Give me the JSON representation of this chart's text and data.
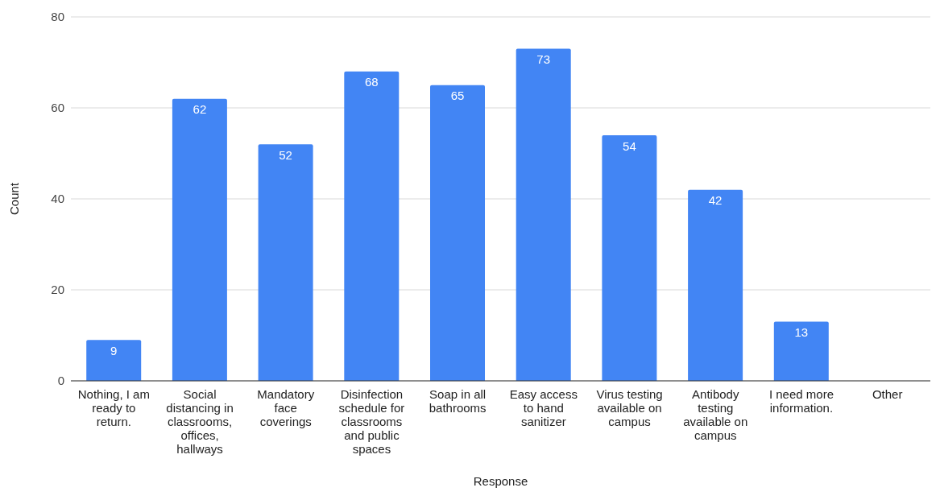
{
  "chart_data": {
    "type": "bar",
    "xlabel": "Response",
    "ylabel": "Count",
    "categories": [
      "Nothing, I am ready to return.",
      "Social distancing in classrooms, offices, hallways",
      "Mandatory face coverings",
      "Disinfection schedule for classrooms and public spaces",
      "Soap in all bathrooms",
      "Easy access to hand sanitizer",
      "Virus testing available on campus",
      "Antibody testing available on campus",
      "I need more information.",
      "Other"
    ],
    "values": [
      9,
      62,
      52,
      68,
      65,
      73,
      54,
      42,
      13,
      0
    ],
    "value_labels": [
      "9",
      "62",
      "52",
      "68",
      "65",
      "73",
      "54",
      "42",
      "13",
      null
    ],
    "color": "#4285f4",
    "ylim": [
      0,
      80
    ],
    "yticks": [
      0,
      20,
      40,
      60,
      80
    ],
    "grid": "y"
  }
}
